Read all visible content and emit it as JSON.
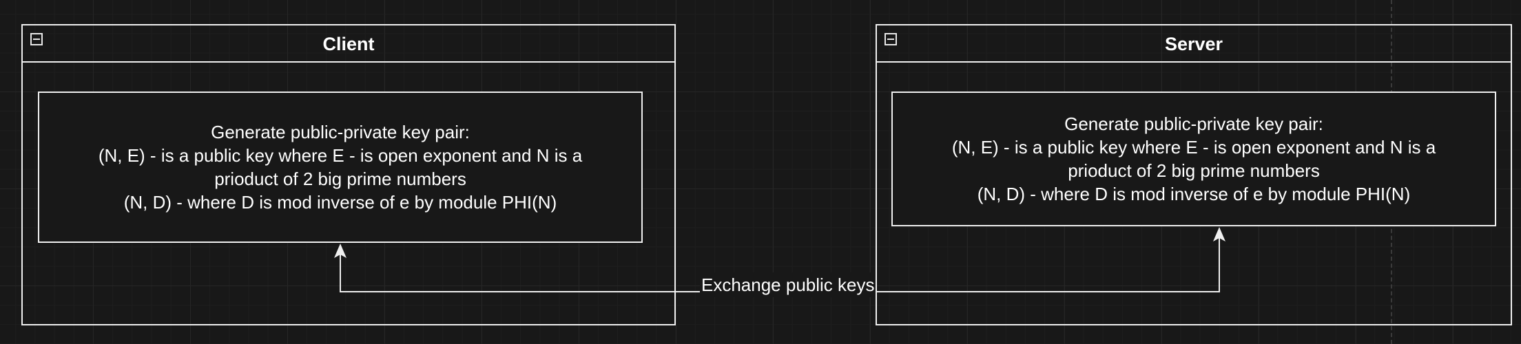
{
  "diagram": {
    "client": {
      "title": "Client",
      "box_lines": [
        "Generate public-private key pair:",
        "(N, E) - is a public key where E - is open exponent and N is a",
        "prioduct of 2 big prime numbers",
        "(N, D) - where D is mod inverse of e by module PHI(N)"
      ]
    },
    "server": {
      "title": "Server",
      "box_lines": [
        "Generate public-private key pair:",
        "(N, E) - is a public key where E - is open exponent and N is a",
        "prioduct of 2 big prime numbers",
        "(N, D) - where D is mod inverse of e by module PHI(N)"
      ]
    },
    "edge": {
      "label": "Exchange public keys"
    },
    "icons": {
      "collapse": "minus-box-icon",
      "arrowhead": "arrowhead-up-icon"
    },
    "colors": {
      "background": "#181818",
      "stroke": "#f0f0f0",
      "text": "#ffffff",
      "grid": "#262626"
    }
  }
}
